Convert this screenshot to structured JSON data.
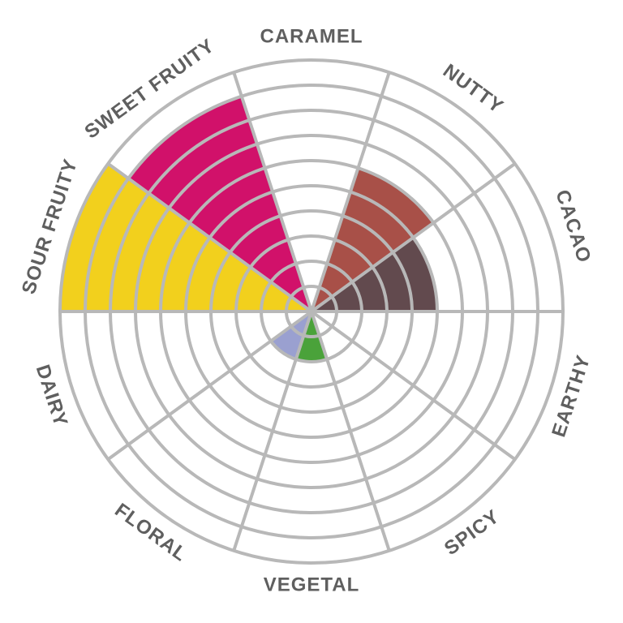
{
  "chart": {
    "type": "polar-sector",
    "rings": 10,
    "sectors": 10,
    "background": "transparent",
    "grid_color": "#b8b8b8",
    "grid_stroke": 4,
    "label_color": "#5f5f5f",
    "label_fontsize": 24,
    "categories": [
      {
        "label": "CARAMEL",
        "value": 0,
        "color": "#f0e68c"
      },
      {
        "label": "NUTTY",
        "value": 6,
        "color": "#a85048"
      },
      {
        "label": "CACAO",
        "value": 5,
        "color": "#624a4e"
      },
      {
        "label": "EARTHY",
        "value": 0,
        "color": "#8a8a8a"
      },
      {
        "label": "SPICY",
        "value": 0,
        "color": "#b04040"
      },
      {
        "label": "VEGETAL",
        "value": 2,
        "color": "#4aa23a"
      },
      {
        "label": "FLORAL",
        "value": 2,
        "color": "#9aa0d0"
      },
      {
        "label": "DAIRY",
        "value": 0,
        "color": "#dcdcdc"
      },
      {
        "label": "SOUR FRUITY",
        "value": 10,
        "color": "#f2d01d"
      },
      {
        "label": "SWEET FRUITY",
        "value": 9,
        "color": "#d1116a"
      }
    ]
  }
}
